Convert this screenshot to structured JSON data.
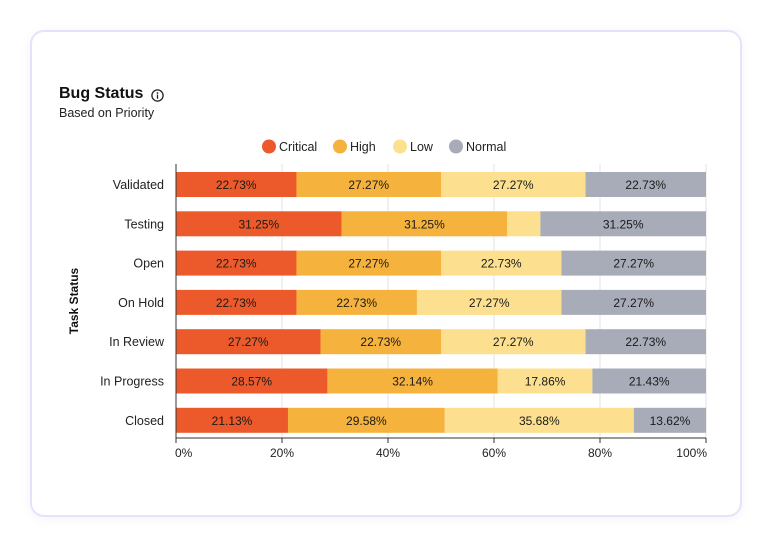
{
  "header": {
    "title": "Bug Status",
    "subtitle": "Based on Priority",
    "info_icon": "info-icon"
  },
  "colors": {
    "Critical": "#ec5a2b",
    "High": "#f5b23d",
    "Low": "#fce08f",
    "Normal": "#a7acb8",
    "card_border": "#e4e3fb"
  },
  "chart_data": {
    "type": "bar",
    "orientation": "horizontal",
    "stacked": true,
    "percent": true,
    "title": "Bug Status",
    "subtitle": "Based on Priority",
    "ylabel": "Task Status",
    "xlabel": "",
    "xlim": [
      0,
      100
    ],
    "x_ticks": [
      "0%",
      "20%",
      "40%",
      "60%",
      "80%",
      "100%"
    ],
    "legend_position": "top",
    "categories": [
      "Validated",
      "Testing",
      "Open",
      "On Hold",
      "In Review",
      "In Progress",
      "Closed"
    ],
    "series": [
      {
        "name": "Critical",
        "values": [
          22.73,
          31.25,
          22.73,
          22.73,
          27.27,
          28.57,
          21.13
        ]
      },
      {
        "name": "High",
        "values": [
          27.27,
          31.25,
          27.27,
          22.73,
          22.73,
          32.14,
          29.58
        ]
      },
      {
        "name": "Low",
        "values": [
          27.27,
          6.25,
          22.73,
          27.27,
          27.27,
          17.86,
          35.68
        ]
      },
      {
        "name": "Normal",
        "values": [
          22.73,
          31.25,
          27.27,
          27.27,
          22.73,
          21.43,
          13.62
        ]
      }
    ],
    "data_labels": [
      [
        "22.73%",
        "27.27%",
        "27.27%",
        "22.73%"
      ],
      [
        "31.25%",
        "31.25%",
        "",
        "31.25%"
      ],
      [
        "22.73%",
        "27.27%",
        "22.73%",
        "27.27%"
      ],
      [
        "22.73%",
        "22.73%",
        "27.27%",
        "27.27%"
      ],
      [
        "27.27%",
        "22.73%",
        "27.27%",
        "22.73%"
      ],
      [
        "28.57%",
        "32.14%",
        "17.86%",
        "21.43%"
      ],
      [
        "21.13%",
        "29.58%",
        "35.68%",
        "13.62%"
      ]
    ]
  }
}
